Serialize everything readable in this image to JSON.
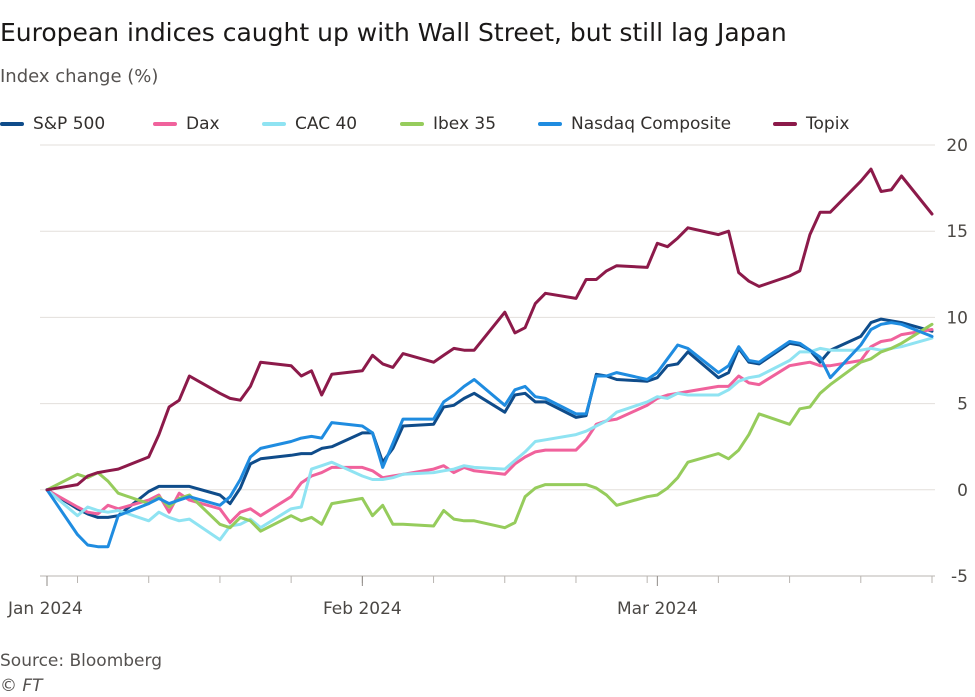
{
  "title": "European indices caught up with Wall Street, but still lag Japan",
  "subtitle": "Index change (%)",
  "source": "Source: Bloomberg",
  "credit": "© FT",
  "chart_data": {
    "type": "line",
    "title": "European indices caught up with Wall Street, but still lag Japan",
    "ylabel": "Index change (%)",
    "xlabel": "",
    "ylim": [
      -5,
      20
    ],
    "yticks": [
      -5,
      0,
      5,
      10,
      15,
      20
    ],
    "y_axis_side": "right",
    "grid": "horizontal",
    "legend_position": "top",
    "x_tick_labels": [
      "Jan 2024",
      "Feb 2024",
      "Mar 2024"
    ],
    "x_tick_label_days": [
      0,
      31,
      60
    ],
    "x_start": "2023-12-29",
    "x_end": "2024-03-25",
    "series": [
      {
        "name": "S&P 500",
        "color": "#0f4c8a",
        "x": [
          0,
          3,
          4,
          5,
          6,
          7,
          10,
          11,
          12,
          13,
          14,
          17,
          18,
          19,
          20,
          21,
          24,
          25,
          26,
          27,
          28,
          31,
          32,
          33,
          34,
          35,
          38,
          39,
          40,
          41,
          42,
          45,
          46,
          47,
          48,
          49,
          52,
          53,
          54,
          55,
          56,
          59,
          60,
          61,
          62,
          63,
          66,
          67,
          68,
          69,
          70,
          73,
          74,
          75,
          76,
          77,
          80,
          81,
          82,
          83,
          84,
          87
        ],
        "y": [
          0,
          -1.1,
          -1.4,
          -1.6,
          -1.6,
          -1.5,
          -0.1,
          0.2,
          0.2,
          0.2,
          0.2,
          -0.3,
          -0.8,
          0.1,
          1.5,
          1.8,
          2.0,
          2.1,
          2.1,
          2.4,
          2.5,
          3.3,
          3.3,
          1.6,
          2.4,
          3.7,
          3.8,
          4.8,
          4.9,
          5.3,
          5.6,
          4.5,
          5.5,
          5.6,
          5.1,
          5.1,
          4.2,
          4.3,
          6.7,
          6.6,
          6.4,
          6.3,
          6.5,
          7.2,
          7.3,
          8.0,
          6.5,
          6.8,
          8.2,
          7.4,
          7.3,
          8.5,
          8.4,
          8.1,
          7.4,
          8.1,
          8.9,
          9.7,
          9.9,
          9.8,
          9.7,
          9.2
        ]
      },
      {
        "name": "Dax",
        "color": "#f0629c",
        "x": [
          0,
          3,
          4,
          5,
          6,
          7,
          10,
          11,
          12,
          13,
          14,
          17,
          18,
          19,
          20,
          21,
          24,
          25,
          26,
          27,
          28,
          31,
          32,
          33,
          34,
          35,
          38,
          39,
          40,
          41,
          42,
          45,
          46,
          47,
          48,
          49,
          52,
          53,
          54,
          55,
          56,
          59,
          60,
          61,
          62,
          63,
          66,
          67,
          68,
          69,
          70,
          73,
          74,
          75,
          76,
          77,
          80,
          81,
          82,
          83,
          84,
          87
        ],
        "y": [
          0,
          -1.0,
          -1.3,
          -1.4,
          -0.9,
          -1.1,
          -0.6,
          -0.3,
          -1.3,
          -0.2,
          -0.6,
          -1.1,
          -1.9,
          -1.3,
          -1.1,
          -1.5,
          -0.4,
          0.4,
          0.8,
          1.0,
          1.3,
          1.3,
          1.1,
          0.7,
          0.8,
          0.9,
          1.2,
          1.4,
          1.0,
          1.3,
          1.1,
          0.9,
          1.5,
          1.9,
          2.2,
          2.3,
          2.3,
          2.9,
          3.8,
          4.0,
          4.1,
          4.9,
          5.3,
          5.5,
          5.6,
          5.7,
          6.0,
          6.0,
          6.6,
          6.2,
          6.1,
          7.2,
          7.3,
          7.4,
          7.2,
          7.2,
          7.5,
          8.3,
          8.6,
          8.7,
          9.0,
          9.3
        ]
      },
      {
        "name": "CAC 40",
        "color": "#8fe3f2",
        "x": [
          0,
          3,
          4,
          5,
          6,
          7,
          10,
          11,
          12,
          13,
          14,
          17,
          18,
          19,
          20,
          21,
          24,
          25,
          26,
          27,
          28,
          31,
          32,
          33,
          34,
          35,
          38,
          39,
          40,
          41,
          42,
          45,
          46,
          47,
          48,
          49,
          52,
          53,
          54,
          55,
          56,
          59,
          60,
          61,
          62,
          63,
          66,
          67,
          68,
          69,
          70,
          73,
          74,
          75,
          76,
          77,
          80,
          81,
          82,
          83,
          84,
          87
        ],
        "y": [
          0,
          -1.5,
          -1.0,
          -1.2,
          -1.3,
          -1.2,
          -1.8,
          -1.3,
          -1.6,
          -1.8,
          -1.7,
          -2.9,
          -2.1,
          -2.0,
          -1.7,
          -2.2,
          -1.1,
          -1.0,
          1.2,
          1.4,
          1.6,
          0.8,
          0.6,
          0.6,
          0.7,
          0.9,
          1.0,
          1.1,
          1.2,
          1.4,
          1.3,
          1.2,
          1.7,
          2.2,
          2.8,
          2.9,
          3.2,
          3.4,
          3.7,
          4.0,
          4.5,
          5.1,
          5.4,
          5.3,
          5.6,
          5.5,
          5.5,
          5.8,
          6.3,
          6.5,
          6.6,
          7.5,
          8.0,
          8.0,
          8.2,
          8.1,
          8.1,
          8.2,
          8.1,
          8.2,
          8.3,
          8.8
        ]
      },
      {
        "name": "Ibex 35",
        "color": "#96cc5c",
        "x": [
          0,
          3,
          4,
          5,
          6,
          7,
          10,
          11,
          12,
          13,
          14,
          17,
          18,
          19,
          20,
          21,
          24,
          25,
          26,
          27,
          28,
          31,
          32,
          33,
          34,
          35,
          38,
          39,
          40,
          41,
          42,
          45,
          46,
          47,
          48,
          49,
          52,
          53,
          54,
          55,
          56,
          59,
          60,
          61,
          62,
          63,
          66,
          67,
          68,
          69,
          70,
          73,
          74,
          75,
          76,
          77,
          80,
          81,
          82,
          83,
          84,
          87
        ],
        "y": [
          0,
          0.9,
          0.7,
          1.0,
          0.5,
          -0.2,
          -0.8,
          -0.4,
          -1.0,
          -0.5,
          -0.3,
          -2.0,
          -2.2,
          -1.6,
          -1.8,
          -2.4,
          -1.5,
          -1.8,
          -1.6,
          -2.0,
          -0.8,
          -0.5,
          -1.5,
          -0.9,
          -2.0,
          -2.0,
          -2.1,
          -1.2,
          -1.7,
          -1.8,
          -1.8,
          -2.2,
          -1.9,
          -0.4,
          0.1,
          0.3,
          0.3,
          0.3,
          0.1,
          -0.3,
          -0.9,
          -0.4,
          -0.3,
          0.1,
          0.7,
          1.6,
          2.1,
          1.8,
          2.3,
          3.2,
          4.4,
          3.8,
          4.7,
          4.8,
          5.6,
          6.1,
          7.4,
          7.6,
          8.0,
          8.2,
          8.5,
          9.6
        ]
      },
      {
        "name": "Nasdaq Composite",
        "color": "#1f8ce0",
        "x": [
          0,
          3,
          4,
          5,
          6,
          7,
          10,
          11,
          12,
          13,
          14,
          17,
          18,
          19,
          20,
          21,
          24,
          25,
          26,
          27,
          28,
          31,
          32,
          33,
          34,
          35,
          38,
          39,
          40,
          41,
          42,
          45,
          46,
          47,
          48,
          49,
          52,
          53,
          54,
          55,
          56,
          59,
          60,
          61,
          62,
          63,
          66,
          67,
          68,
          69,
          70,
          73,
          74,
          75,
          76,
          77,
          80,
          81,
          82,
          83,
          84,
          87
        ],
        "y": [
          0,
          -2.6,
          -3.2,
          -3.3,
          -3.3,
          -1.5,
          -0.8,
          -0.5,
          -0.8,
          -0.6,
          -0.4,
          -0.9,
          -0.4,
          0.6,
          1.9,
          2.4,
          2.8,
          3.0,
          3.1,
          3.0,
          3.9,
          3.7,
          3.3,
          1.3,
          2.7,
          4.1,
          4.1,
          5.1,
          5.5,
          6.0,
          6.4,
          4.9,
          5.8,
          6.0,
          5.4,
          5.3,
          4.4,
          4.4,
          6.6,
          6.6,
          6.8,
          6.4,
          6.8,
          7.6,
          8.4,
          8.2,
          6.8,
          7.2,
          8.3,
          7.5,
          7.4,
          8.6,
          8.5,
          8.1,
          7.7,
          6.5,
          8.4,
          9.3,
          9.6,
          9.7,
          9.6,
          8.9
        ]
      },
      {
        "name": "Topix",
        "color": "#8c1a4a",
        "x": [
          0,
          3,
          4,
          5,
          6,
          7,
          10,
          11,
          12,
          13,
          14,
          17,
          18,
          19,
          20,
          21,
          24,
          25,
          26,
          27,
          28,
          31,
          32,
          33,
          34,
          35,
          38,
          39,
          40,
          41,
          42,
          45,
          46,
          47,
          48,
          49,
          52,
          53,
          54,
          55,
          56,
          59,
          60,
          61,
          62,
          63,
          66,
          67,
          68,
          69,
          70,
          73,
          74,
          75,
          76,
          77,
          80,
          81,
          82,
          83,
          84,
          87
        ],
        "y": [
          0,
          0.3,
          0.8,
          1.0,
          1.1,
          1.2,
          1.9,
          3.2,
          4.8,
          5.2,
          6.6,
          5.6,
          5.3,
          5.2,
          6.0,
          7.4,
          7.2,
          6.6,
          6.9,
          5.5,
          6.7,
          6.9,
          7.8,
          7.3,
          7.1,
          7.9,
          7.4,
          7.8,
          8.2,
          8.1,
          8.1,
          10.3,
          9.1,
          9.4,
          10.8,
          11.4,
          11.1,
          12.2,
          12.2,
          12.7,
          13.0,
          12.9,
          14.3,
          14.1,
          14.6,
          15.2,
          14.8,
          15.0,
          12.6,
          12.1,
          11.8,
          12.4,
          12.7,
          14.8,
          16.1,
          16.1,
          17.9,
          18.6,
          17.3,
          17.4,
          18.2,
          16.0
        ]
      }
    ]
  }
}
